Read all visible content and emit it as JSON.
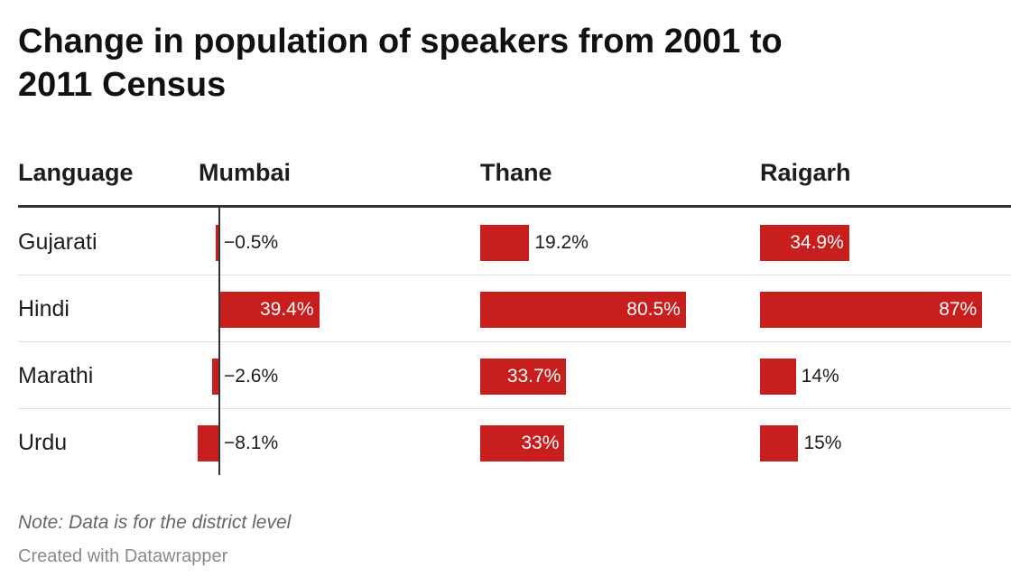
{
  "title": "Change in population of speakers from 2001 to 2011 Census",
  "columns": {
    "language": "Language",
    "mumbai": "Mumbai",
    "thane": "Thane",
    "raigarh": "Raigarh"
  },
  "note": "Note: Data is for the district level",
  "credit": "Created with Datawrapper",
  "colors": {
    "bar": "#c81e1e",
    "axis": "#333333"
  },
  "chart_data": {
    "type": "bar",
    "title": "Change in population of speakers from 2001 to 2011 Census",
    "categories": [
      "Gujarati",
      "Hindi",
      "Marathi",
      "Urdu"
    ],
    "series": [
      {
        "name": "Mumbai",
        "values": [
          -0.5,
          39.4,
          -2.6,
          -8.1
        ],
        "labels": [
          "−0.5%",
          "39.4%",
          "−2.6%",
          "−8.1%"
        ]
      },
      {
        "name": "Thane",
        "values": [
          19.2,
          80.5,
          33.7,
          33
        ],
        "labels": [
          "19.2%",
          "80.5%",
          "33.7%",
          "33%"
        ]
      },
      {
        "name": "Raigarh",
        "values": [
          34.9,
          87,
          14,
          15
        ],
        "labels": [
          "34.9%",
          "87%",
          "14%",
          "15%"
        ]
      }
    ],
    "unit": "%"
  }
}
